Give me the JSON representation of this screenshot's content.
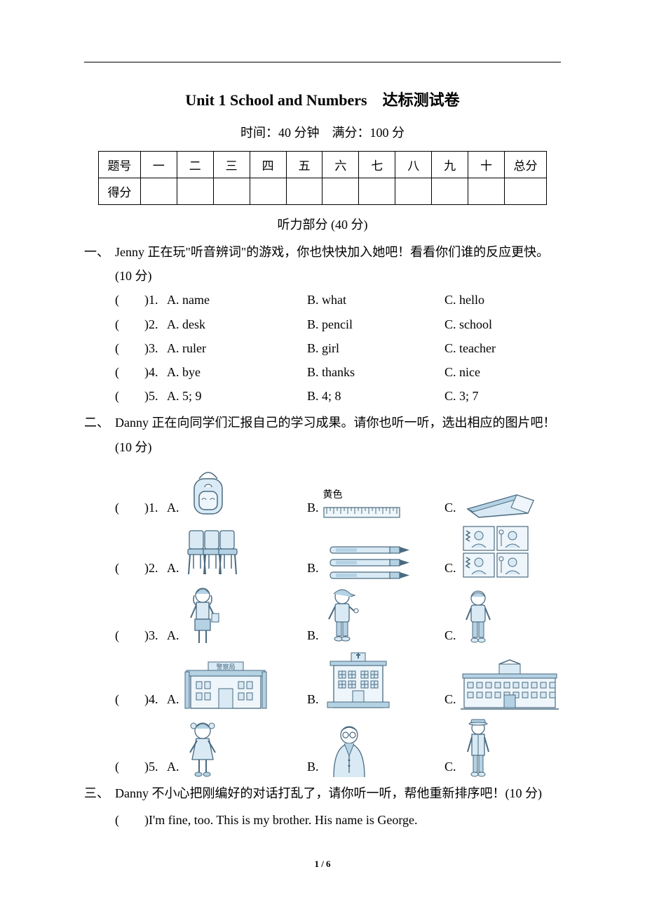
{
  "page": {
    "title": "Unit 1 School and Numbers　达标测试卷",
    "subtitle": "时间：40 分钟　满分：100 分",
    "footer": "1 / 6",
    "listening_header": "听力部分 (40 分)"
  },
  "score_table": {
    "row1": [
      "题号",
      "一",
      "二",
      "三",
      "四",
      "五",
      "六",
      "七",
      "八",
      "九",
      "十",
      "总分"
    ],
    "row2_label": "得分"
  },
  "q1": {
    "heading_num": "一、",
    "heading_text": "Jenny 正在玩\"听音辨词\"的游戏，你也快快加入她吧！看看你们谁的反应更快。(10 分)",
    "items": [
      {
        "n": "1",
        "a": "A. name",
        "b": "B. what",
        "c": "C. hello"
      },
      {
        "n": "2",
        "a": "A. desk",
        "b": "B. pencil",
        "c": "C. school"
      },
      {
        "n": "3",
        "a": "A. ruler",
        "b": "B. girl",
        "c": "C. teacher"
      },
      {
        "n": "4",
        "a": "A. bye",
        "b": "B. thanks",
        "c": "C. nice"
      },
      {
        "n": "5",
        "a": "A. 5; 9",
        "b": "B. 4; 8",
        "c": "C. 3; 7"
      }
    ]
  },
  "q2": {
    "heading_num": "二、",
    "heading_text": "Danny 正在向同学们汇报自己的学习成果。请你也听一听，选出相应的图片吧！(10 分)",
    "yellow_label": "黄色",
    "items": [
      {
        "n": "1",
        "icons": [
          "backpack",
          "ruler",
          "eraser"
        ]
      },
      {
        "n": "2",
        "icons": [
          "chairs",
          "pens",
          "photo-grid"
        ]
      },
      {
        "n": "3",
        "icons": [
          "girl-student",
          "boy-cap",
          "boy-plain"
        ]
      },
      {
        "n": "4",
        "icons": [
          "police-station",
          "hospital",
          "school-building"
        ]
      },
      {
        "n": "5",
        "icons": [
          "little-girl",
          "grandpa",
          "officer"
        ]
      }
    ],
    "style": {
      "line_color": "#4a6a80",
      "fill_light": "#d9eaf5",
      "fill_mid": "#b4d2e4",
      "fill_pale": "#eef6fb"
    }
  },
  "q3": {
    "heading_num": "三、",
    "heading_text": "Danny 不小心把刚编好的对话打乱了，请你听一听，帮他重新排序吧！(10 分)",
    "line1": "(　　)I'm fine, too. This is my brother. His name is George."
  }
}
